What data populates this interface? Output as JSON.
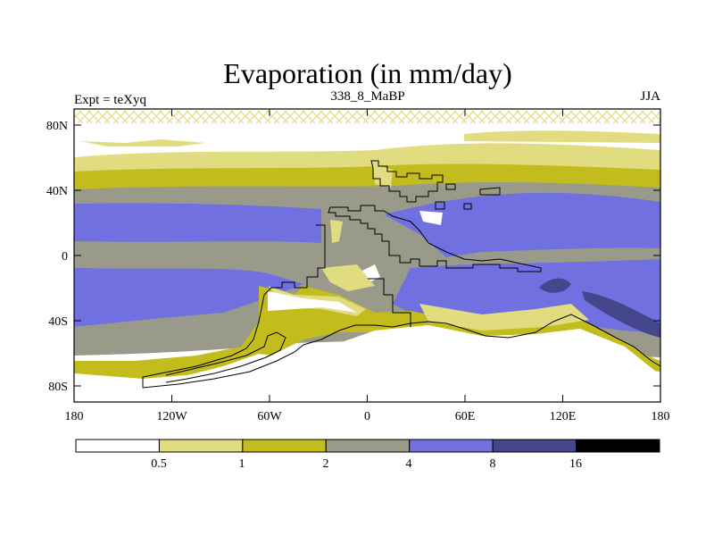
{
  "title": "Evaporation (in mm/day)",
  "left_label": "Expt = teXyq",
  "center_label": "338_8_MaBP",
  "right_label": "JJA",
  "map": {
    "lat_ticks": [
      "80N",
      "40N",
      "0",
      "40S",
      "80S"
    ],
    "lon_ticks": [
      "180",
      "120W",
      "60W",
      "0",
      "60E",
      "120E",
      "180"
    ]
  },
  "colorbar": {
    "labels": [
      "0.5",
      "1",
      "2",
      "4",
      "8",
      "16"
    ],
    "colors": [
      "#ffffff",
      "#e1dc80",
      "#c2bd1c",
      "#9a9a8a",
      "#7070e1",
      "#46468c",
      "#000000"
    ]
  },
  "colors": {
    "frame": "#000000",
    "coast": "#000000"
  }
}
